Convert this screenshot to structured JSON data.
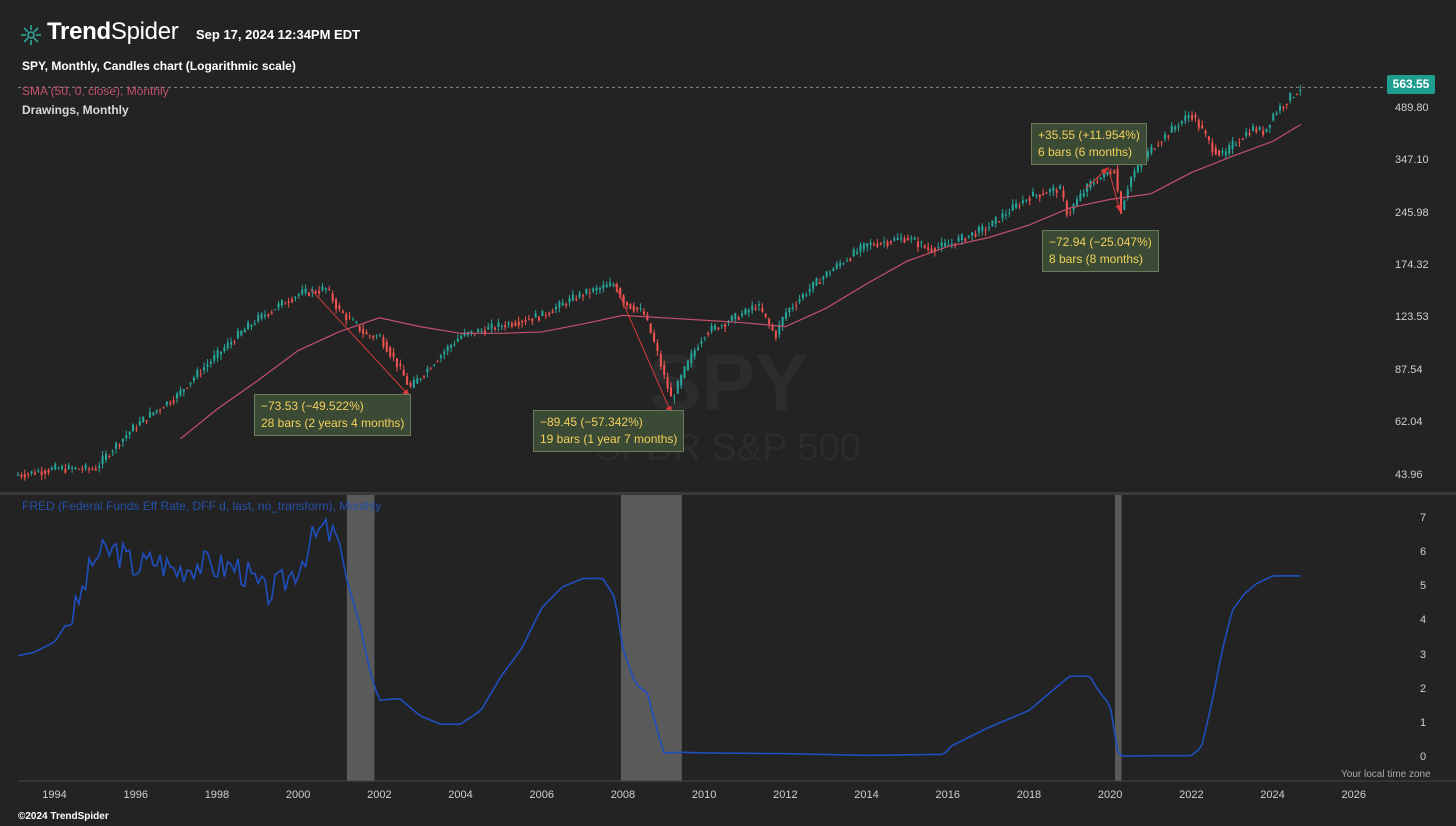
{
  "brand": {
    "part1": "Trend",
    "part2": "Spider"
  },
  "timestamp": "Sep 17, 2024 12:34PM EDT",
  "legend": {
    "spy": "SPY, Monthly, Candles chart (Logarithmic scale)",
    "sma": "SMA (50, 0, close), Monthly",
    "drawings": "Drawings, Monthly",
    "fred": "FRED (Federal Funds Eff Rate, DFF d, last, no_transform), Monthly"
  },
  "watermark": {
    "ticker": "SPY",
    "name": "SPDR S&P 500"
  },
  "price_badge": "563.55",
  "footer": "©2024 TrendSpider",
  "local_time_label": "Your local time zone",
  "annotations": [
    {
      "line1": "−73.53 (−49.522%)",
      "line2": "28 bars (2 years 4 months)"
    },
    {
      "line1": "−89.45 (−57.342%)",
      "line2": "19 bars (1 year 7 months)"
    },
    {
      "line1": "+35.55 (+11.954%)",
      "line2": "6 bars (6 months)"
    },
    {
      "line1": "−72.94 (−25.047%)",
      "line2": "8 bars (8 months)"
    }
  ],
  "colors": {
    "background": "#232323",
    "up": "#26a69a",
    "down": "#ef5350",
    "sma": "#c2506e",
    "fred": "#1f4fbf",
    "shade": "#5a5a5a",
    "badge": "#1f9e8f"
  },
  "chart_data": [
    {
      "type": "candlestick",
      "title": "SPY, Monthly, Candles chart (Logarithmic scale)",
      "y_scale": "log",
      "y_ticks": [
        "489.80",
        "347.10",
        "245.98",
        "174.32",
        "123.53",
        "87.54",
        "62.04",
        "43.96"
      ],
      "x_ticks": [
        "1994",
        "1996",
        "1998",
        "2000",
        "2002",
        "2004",
        "2006",
        "2008",
        "2010",
        "2012",
        "2014",
        "2016",
        "2018",
        "2020",
        "2022",
        "2024",
        "2026"
      ],
      "x_range": [
        1993.1,
        2026.4
      ],
      "ylim": [
        40,
        580
      ],
      "last_price": 563.55,
      "series": [
        {
          "name": "SPY",
          "x": [
            1993.0,
            1994.0,
            1995.0,
            1996.0,
            1997.0,
            1998.0,
            1999.0,
            2000.0,
            2000.7,
            2001.0,
            2001.7,
            2002.0,
            2002.75,
            2003.0,
            2004.0,
            2005.0,
            2006.0,
            2007.0,
            2007.8,
            2008.0,
            2008.5,
            2009.0,
            2009.2,
            2010.0,
            2011.0,
            2011.3,
            2011.75,
            2012.0,
            2013.0,
            2014.0,
            2015.0,
            2015.5,
            2016.0,
            2017.0,
            2018.0,
            2018.75,
            2018.95,
            2019.5,
            2019.9,
            2020.1,
            2020.25,
            2020.5,
            2021.0,
            2021.99,
            2022.5,
            2022.8,
            2023.0,
            2023.5,
            2023.8,
            2024.0,
            2024.7
          ],
          "values": [
            44,
            46,
            46,
            61,
            74,
            97,
            123,
            145,
            150,
            130,
            110,
            110,
            78,
            84,
            110,
            118,
            126,
            145,
            155,
            138,
            128,
            85,
            72,
            112,
            128,
            135,
            110,
            128,
            165,
            200,
            210,
            195,
            200,
            225,
            275,
            290,
            245,
            298,
            320,
            330,
            248,
            310,
            375,
            475,
            380,
            358,
            385,
            430,
            420,
            470,
            563.55
          ]
        },
        {
          "name": "SMA (50, 0, close)",
          "x": [
            1997.1,
            1998.0,
            1999.0,
            2000.0,
            2001.0,
            2002.0,
            2003.0,
            2004.0,
            2005.0,
            2006.0,
            2007.0,
            2008.0,
            2009.0,
            2010.0,
            2011.0,
            2012.0,
            2013.0,
            2014.0,
            2015.0,
            2016.0,
            2017.0,
            2018.0,
            2019.0,
            2020.0,
            2021.0,
            2022.0,
            2023.0,
            2024.0,
            2024.7
          ],
          "values": [
            56,
            68,
            82,
            100,
            113,
            124,
            117,
            112,
            112,
            113,
            119,
            126,
            124,
            122,
            120,
            117,
            132,
            155,
            180,
            198,
            210,
            228,
            255,
            270,
            280,
            322,
            358,
            395,
            442
          ]
        }
      ],
      "drawings": [
        {
          "from": [
            2000.3,
            150
          ],
          "to": [
            2002.75,
            74
          ]
        },
        {
          "from": [
            2007.8,
            155
          ],
          "to": [
            2009.2,
            66
          ]
        },
        {
          "from": [
            2019.4,
            290
          ],
          "to": [
            2019.95,
            333
          ]
        },
        {
          "from": [
            2019.95,
            333
          ],
          "to": [
            2020.25,
            248
          ]
        }
      ]
    },
    {
      "type": "line",
      "title": "FRED (Federal Funds Eff Rate, DFF d, last, no_transform), Monthly",
      "y_ticks": [
        "7",
        "6",
        "5",
        "4",
        "3",
        "2",
        "1",
        "0"
      ],
      "ylim": [
        -0.6,
        7.4
      ],
      "shaded_ranges": [
        [
          2001.2,
          2001.88
        ],
        [
          2007.95,
          2009.45
        ],
        [
          2020.12,
          2020.28
        ]
      ],
      "series": [
        {
          "name": "Federal Funds Eff Rate",
          "x": [
            1993.1,
            1993.5,
            1994.0,
            1994.5,
            1995.0,
            1995.5,
            1996.0,
            1996.5,
            1997.0,
            1997.5,
            1998.0,
            1998.5,
            1998.8,
            1999.2,
            1999.6,
            2000.0,
            2000.3,
            2000.6,
            2001.0,
            2001.2,
            2001.5,
            2001.8,
            2002.0,
            2002.5,
            2003.0,
            2003.5,
            2004.0,
            2004.5,
            2005.0,
            2005.5,
            2006.0,
            2006.5,
            2007.0,
            2007.5,
            2007.8,
            2008.0,
            2008.3,
            2008.6,
            2009.0,
            2009.5,
            2010.0,
            2012.0,
            2014.0,
            2015.9,
            2016.1,
            2017.0,
            2017.5,
            2018.0,
            2018.5,
            2019.0,
            2019.5,
            2019.7,
            2020.0,
            2020.2,
            2020.4,
            2021.0,
            2022.0,
            2022.25,
            2022.5,
            2022.75,
            2023.0,
            2023.3,
            2023.6,
            2024.0,
            2024.7
          ],
          "values": [
            3.0,
            3.1,
            3.4,
            4.3,
            5.9,
            6.1,
            5.6,
            5.8,
            5.5,
            5.7,
            5.6,
            5.6,
            5.3,
            4.8,
            5.1,
            5.6,
            6.3,
            6.7,
            6.4,
            5.2,
            4.0,
            2.4,
            1.7,
            1.75,
            1.25,
            1.0,
            1.0,
            1.4,
            2.4,
            3.2,
            4.4,
            5.0,
            5.25,
            5.26,
            4.7,
            3.2,
            2.2,
            1.9,
            0.16,
            0.18,
            0.16,
            0.14,
            0.09,
            0.12,
            0.37,
            0.9,
            1.15,
            1.4,
            1.9,
            2.4,
            2.4,
            2.0,
            1.55,
            0.1,
            0.07,
            0.08,
            0.08,
            0.33,
            1.6,
            3.1,
            4.3,
            4.8,
            5.1,
            5.33,
            5.33
          ]
        }
      ]
    }
  ]
}
